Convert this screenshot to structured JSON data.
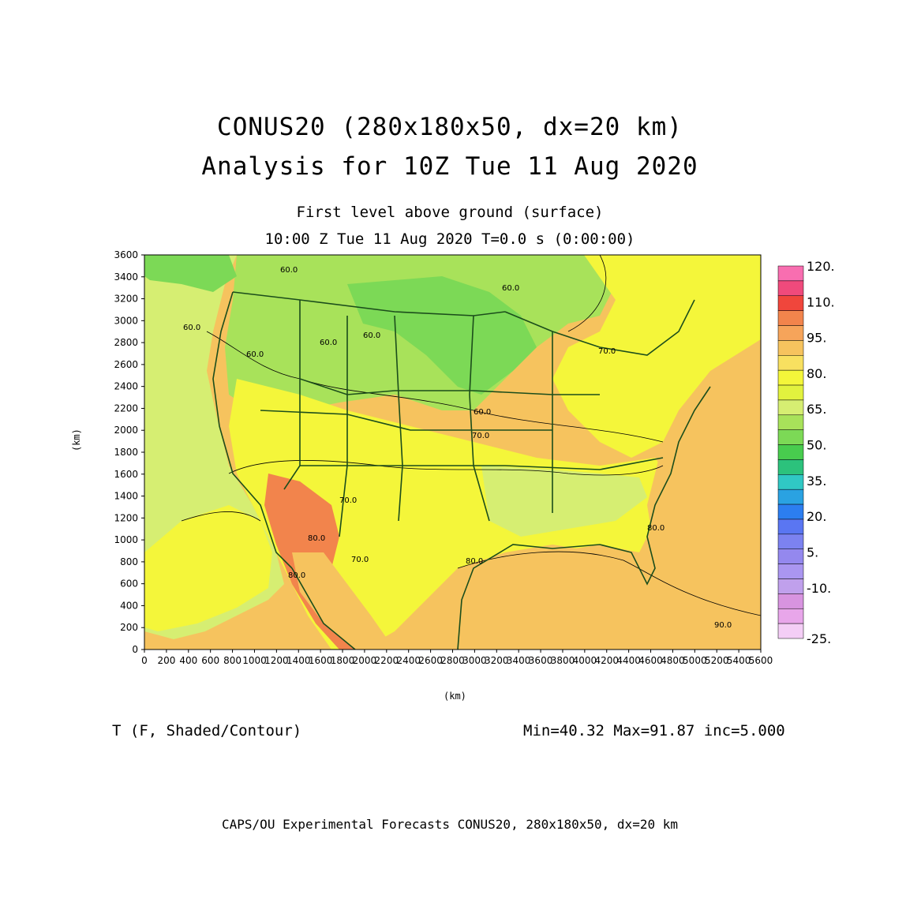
{
  "header": {
    "title_line1": "CONUS20 (280x180x50, dx=20 km)",
    "title_line2": "Analysis for 10Z Tue 11 Aug 2020",
    "subtitle_line1": "First level above ground (surface)",
    "subtitle_line2": "10:00 Z Tue 11 Aug 2020    T=0.0 s (0:00:00)"
  },
  "axes": {
    "x_label": "(km)",
    "y_label": "(km)",
    "x_ticks": [
      "0",
      "200",
      "400",
      "600",
      "800",
      "1000",
      "1200",
      "1400",
      "1600",
      "1800",
      "2000",
      "2200",
      "2400",
      "2600",
      "2800",
      "3000",
      "3200",
      "3400",
      "3600",
      "3800",
      "4000",
      "4200",
      "4400",
      "4600",
      "4800",
      "5000",
      "5200",
      "5400",
      "5600"
    ],
    "y_ticks": [
      "0",
      "200",
      "400",
      "600",
      "800",
      "1000",
      "1200",
      "1400",
      "1600",
      "1800",
      "2000",
      "2200",
      "2400",
      "2600",
      "2800",
      "3000",
      "3200",
      "3400",
      "3600"
    ],
    "x_range": [
      0,
      5600
    ],
    "y_range": [
      0,
      3600
    ]
  },
  "colorbar": {
    "labels": [
      "120.",
      "110.",
      "95.",
      "80.",
      "65.",
      "50.",
      "35.",
      "20.",
      "5.",
      "-10.",
      "-25."
    ],
    "colors": [
      "#f86eb0",
      "#f04a7c",
      "#f0463c",
      "#f2844c",
      "#f6a45a",
      "#f6c35e",
      "#f8e060",
      "#f4f63a",
      "#e2f23e",
      "#d6ee72",
      "#a8e25a",
      "#7cd956",
      "#48cc4e",
      "#2cc27c",
      "#30c8c4",
      "#2aa2e2",
      "#2c7ef0",
      "#5a76f2",
      "#7c82f0",
      "#9488ee",
      "#aa96f0",
      "#c0a0ec",
      "#d894e0",
      "#e8a6ea",
      "#f4cef6"
    ]
  },
  "map": {
    "contour_labels": [
      "60.0",
      "60.0",
      "60.0",
      "60.0",
      "60.0",
      "60.0",
      "70.0",
      "60.0",
      "70.0",
      "70.0",
      "80.0",
      "80.0",
      "70.0",
      "80.0",
      "80.0",
      "90.0"
    ],
    "colors": {
      "sea_warm": "#f6c35e",
      "land_yellow": "#f4f63a",
      "land_green_light": "#d6ee72",
      "land_green": "#a8e25a",
      "land_green_dark": "#7cd956",
      "hot_orange": "#f2844c",
      "boundary": "#1b4d1b"
    }
  },
  "footer": {
    "variable": "T (F, Shaded/Contour)",
    "stats": "Min=40.32 Max=91.87 inc=5.000",
    "credits": "CAPS/OU Experimental Forecasts  CONUS20, 280x180x50, dx=20 km"
  }
}
